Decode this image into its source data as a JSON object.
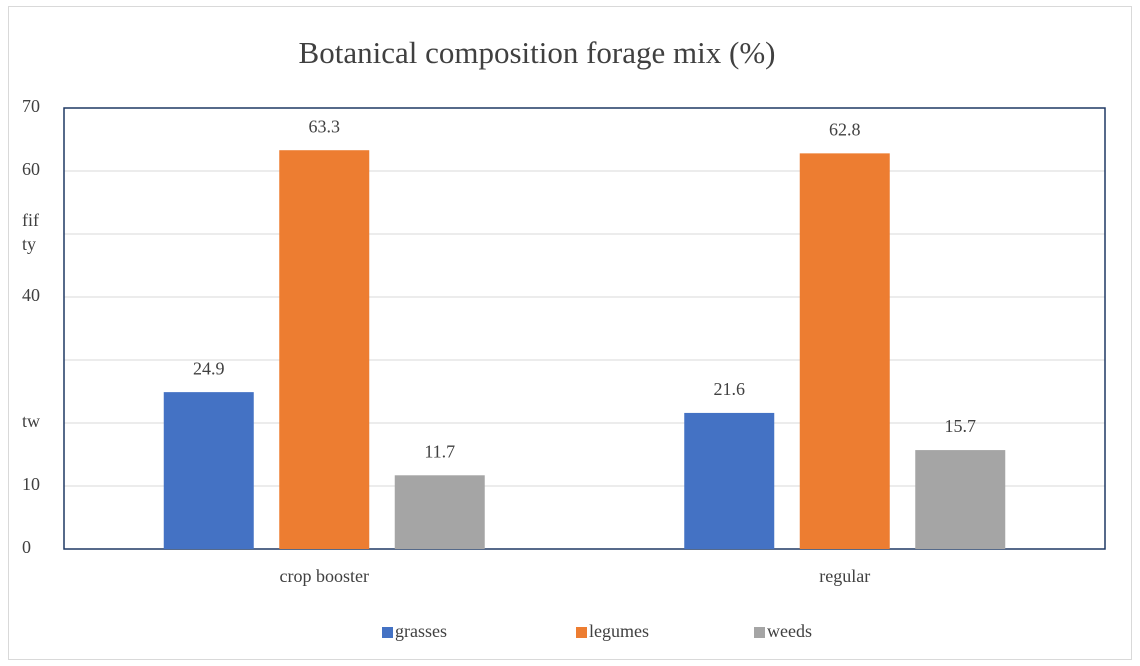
{
  "chart_data": {
    "type": "bar",
    "title": "Botanical composition forage mix (%)",
    "categories": [
      "crop booster",
      "regular"
    ],
    "series": [
      {
        "name": "grasses",
        "color": "#4472c4",
        "values": [
          24.9,
          21.6
        ]
      },
      {
        "name": "legumes",
        "color": "#ed7d31",
        "values": [
          63.3,
          62.8
        ]
      },
      {
        "name": "weeds",
        "color": "#a5a5a5",
        "values": [
          11.7,
          15.7
        ]
      }
    ],
    "ylim": [
      0,
      70
    ],
    "yticks": [
      0,
      10,
      {
        "value": 20,
        "label": "tw"
      },
      {
        "value": 30,
        "label": null
      },
      40,
      {
        "value": 50,
        "label": "fif ty"
      },
      60,
      70
    ],
    "grid": true,
    "legend": "bottom"
  }
}
